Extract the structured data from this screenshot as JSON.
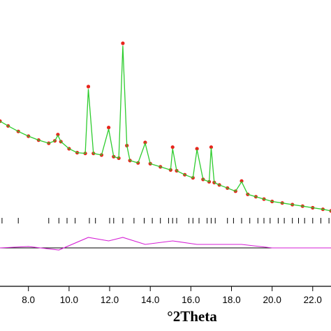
{
  "chart_data": {
    "type": "line",
    "title": "",
    "xlabel": "°2Theta",
    "ylabel": "",
    "xlim": [
      6.6,
      22.9
    ],
    "xticks": [
      8.0,
      10.0,
      12.0,
      14.0,
      16.0,
      18.0,
      20.0,
      22.0
    ],
    "xtick_labels": [
      "8.0",
      "10.0",
      "12.0",
      "14.0",
      "16.0",
      "18.0",
      "20.0",
      "22.0"
    ],
    "grid": false,
    "legend": "none",
    "colors": {
      "observed": "#e8241c",
      "calculated": "#2ecc2e",
      "difference": "#d51ed5",
      "reflections": "#000000",
      "axis": "#000000"
    },
    "series": [
      {
        "role": "observed",
        "x": [
          6.6,
          7.0,
          7.5,
          8.0,
          8.5,
          9.0,
          9.3,
          9.45,
          9.6,
          10.0,
          10.4,
          10.8,
          10.95,
          11.2,
          11.6,
          11.95,
          12.2,
          12.45,
          12.65,
          12.85,
          13.0,
          13.4,
          13.75,
          14.0,
          14.5,
          15.0,
          15.1,
          15.3,
          15.7,
          16.1,
          16.3,
          16.6,
          16.9,
          17.0,
          17.15,
          17.4,
          17.8,
          18.2,
          18.5,
          18.8,
          19.2,
          19.6,
          20.0,
          20.5,
          21.0,
          21.5,
          22.0,
          22.5,
          22.9
        ],
        "y": [
          2010,
          1950,
          1880,
          1820,
          1770,
          1730,
          1760,
          1840,
          1750,
          1660,
          1610,
          1600,
          2450,
          1600,
          1580,
          1930,
          1560,
          1540,
          3000,
          1700,
          1510,
          1480,
          1740,
          1470,
          1430,
          1390,
          1680,
          1380,
          1330,
          1290,
          1660,
          1270,
          1240,
          1680,
          1230,
          1200,
          1160,
          1120,
          1250,
          1080,
          1050,
          1020,
          990,
          970,
          950,
          930,
          910,
          890,
          870
        ]
      },
      {
        "role": "calculated",
        "x": [
          6.6,
          7.0,
          7.5,
          8.0,
          8.5,
          9.0,
          9.3,
          9.45,
          9.6,
          10.0,
          10.4,
          10.8,
          10.95,
          11.2,
          11.6,
          11.95,
          12.2,
          12.45,
          12.65,
          12.85,
          13.0,
          13.4,
          13.75,
          14.0,
          14.5,
          15.0,
          15.1,
          15.3,
          15.7,
          16.1,
          16.3,
          16.6,
          16.9,
          17.0,
          17.15,
          17.4,
          17.8,
          18.2,
          18.5,
          18.8,
          19.2,
          19.6,
          20.0,
          20.5,
          21.0,
          21.5,
          22.0,
          22.5,
          22.9
        ],
        "y": [
          2010,
          1950,
          1880,
          1820,
          1770,
          1730,
          1760,
          1830,
          1750,
          1660,
          1610,
          1600,
          2420,
          1600,
          1580,
          1910,
          1560,
          1540,
          2970,
          1700,
          1510,
          1480,
          1730,
          1470,
          1430,
          1390,
          1660,
          1380,
          1330,
          1290,
          1650,
          1270,
          1240,
          1670,
          1230,
          1200,
          1160,
          1120,
          1240,
          1080,
          1050,
          1020,
          990,
          970,
          950,
          930,
          910,
          890,
          870
        ]
      },
      {
        "role": "difference",
        "x": [
          6.6,
          8.0,
          9.5,
          10.95,
          11.95,
          12.65,
          13.75,
          15.1,
          16.3,
          17.0,
          18.5,
          20.0,
          22.9
        ],
        "y": [
          0,
          4,
          -6,
          30,
          20,
          30,
          10,
          20,
          10,
          10,
          10,
          0,
          0
        ]
      }
    ],
    "reflections": [
      6.7,
      7.5,
      9.0,
      9.5,
      9.9,
      10.3,
      11.0,
      11.3,
      12.0,
      12.2,
      12.65,
      13.2,
      13.7,
      14.1,
      14.5,
      14.9,
      15.1,
      15.3,
      15.9,
      16.1,
      16.4,
      16.8,
      17.0,
      17.2,
      17.8,
      18.1,
      18.5,
      18.9,
      19.3,
      19.6,
      19.9,
      20.3,
      20.6,
      21.0,
      21.3,
      21.6,
      22.0,
      22.4,
      22.8
    ]
  }
}
